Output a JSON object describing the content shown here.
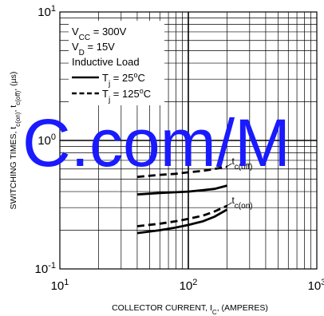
{
  "chart_data": {
    "type": "line",
    "xlabel": "COLLECTOR CURRENT, I",
    "xlabel_sub": "C",
    "xlabel_suffix": ", (AMPERES)",
    "ylabel": "SWITCHING TIMES, t",
    "ylabel_mid": "c(on)",
    "ylabel_sep": ", t",
    "ylabel_sub2": "c(off)",
    "ylabel_suffix": ", (µs)",
    "x_scale": "log",
    "y_scale": "log",
    "xlim": [
      10,
      1000
    ],
    "ylim": [
      0.1,
      10
    ],
    "grid": true,
    "x_ticks": [
      {
        "value": 10,
        "base": "10",
        "exp": "1"
      },
      {
        "value": 100,
        "base": "10",
        "exp": "2"
      },
      {
        "value": 1000,
        "base": "10",
        "exp": "3"
      }
    ],
    "y_ticks": [
      {
        "value": 0.1,
        "base": "10",
        "exp": "-1"
      },
      {
        "value": 1,
        "base": "10",
        "exp": "0"
      },
      {
        "value": 10,
        "base": "10",
        "exp": "1"
      }
    ],
    "legend": {
      "position": "top-left",
      "conditions": [
        {
          "text": "V",
          "sub": "CC",
          "rest": " = 300V"
        },
        {
          "text": "V",
          "sub": "D",
          "rest": " = 15V"
        },
        {
          "text": "Inductive Load",
          "sub": "",
          "rest": ""
        }
      ],
      "entries": [
        {
          "text": "T",
          "sub": "j",
          "rest": " = 25",
          "sup": "o",
          "unit": "C",
          "style": "solid"
        },
        {
          "text": "T",
          "sub": "j",
          "rest": " = 125",
          "sup": "o",
          "unit": "C",
          "style": "dashed"
        }
      ]
    },
    "series": [
      {
        "label": "t",
        "label_sub": "c(off)",
        "style": "dashed",
        "x": [
          40,
          60,
          80,
          100,
          130,
          160,
          200
        ],
        "y": [
          0.52,
          0.54,
          0.55,
          0.565,
          0.58,
          0.6,
          0.625
        ]
      },
      {
        "label": "t",
        "label_sub": "c(off)",
        "style": "solid",
        "x": [
          40,
          60,
          80,
          100,
          130,
          160,
          200
        ],
        "y": [
          0.38,
          0.39,
          0.395,
          0.4,
          0.41,
          0.42,
          0.445
        ]
      },
      {
        "label": "t",
        "label_sub": "c(on)",
        "style": "dashed",
        "x": [
          40,
          60,
          80,
          100,
          130,
          160,
          200
        ],
        "y": [
          0.215,
          0.225,
          0.235,
          0.245,
          0.26,
          0.28,
          0.31
        ]
      },
      {
        "label": "t",
        "label_sub": "c(on)",
        "style": "solid",
        "x": [
          40,
          60,
          80,
          100,
          130,
          160,
          200
        ],
        "y": [
          0.19,
          0.2,
          0.21,
          0.22,
          0.235,
          0.255,
          0.29
        ]
      }
    ],
    "annotations": [
      {
        "text": "t",
        "sub": "c(off)",
        "target_series": 0
      },
      {
        "text": "t",
        "sub": "c(on)",
        "target_series": 2
      }
    ],
    "watermark": "C.com/M",
    "colors": {
      "line": "#000000",
      "grid": "#000000",
      "watermark": "#1a1aff"
    }
  }
}
